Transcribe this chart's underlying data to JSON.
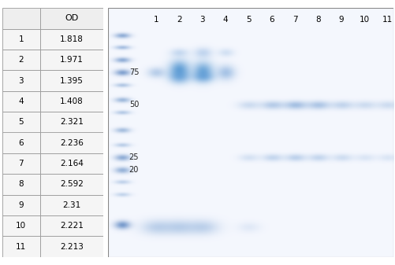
{
  "table_rows": [
    [
      "",
      "OD"
    ],
    [
      "1",
      "1.818"
    ],
    [
      "2",
      "1.971"
    ],
    [
      "3",
      "1.395"
    ],
    [
      "4",
      "1.408"
    ],
    [
      "5",
      "2.321"
    ],
    [
      "6",
      "2.236"
    ],
    [
      "7",
      "2.164"
    ],
    [
      "8",
      "2.592"
    ],
    [
      "9",
      "2.31"
    ],
    [
      "10",
      "2.221"
    ],
    [
      "11",
      "2.213"
    ]
  ],
  "lane_labels": [
    "1",
    "2",
    "3",
    "4",
    "5",
    "6",
    "7",
    "8",
    "9",
    "10",
    "11"
  ],
  "mw_labels": [
    "75",
    "50",
    "25",
    "20"
  ],
  "table_border": "#999999",
  "table_header_bg": "#eeeeee",
  "table_cell_bg": "#f5f5f5"
}
